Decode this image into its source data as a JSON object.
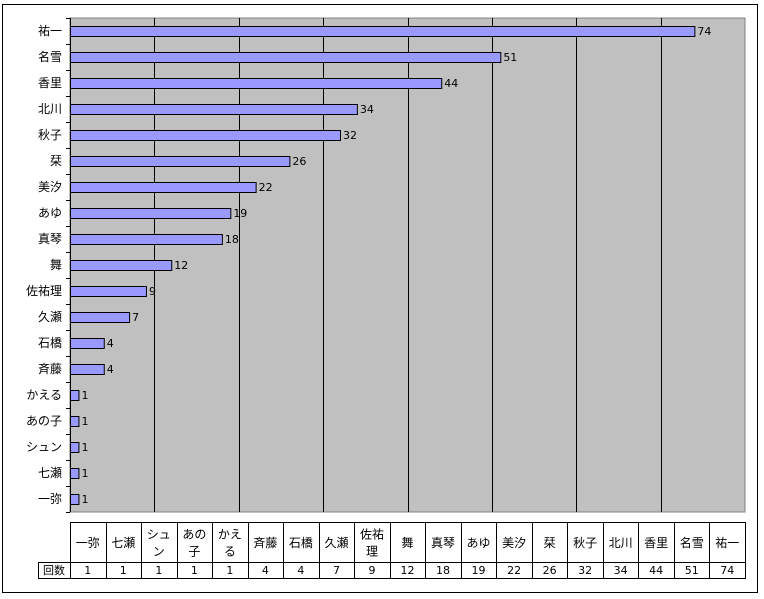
{
  "chart_data": {
    "type": "bar",
    "orientation": "horizontal",
    "categories": [
      "祐一",
      "名雪",
      "香里",
      "北川",
      "秋子",
      "栞",
      "美汐",
      "あゆ",
      "真琴",
      "舞",
      "佐祐理",
      "久瀬",
      "石橋",
      "斉藤",
      "かえる",
      "あの子",
      "シュン",
      "七瀬",
      "一弥"
    ],
    "values": [
      74,
      51,
      44,
      34,
      32,
      26,
      22,
      19,
      18,
      12,
      9,
      7,
      4,
      4,
      1,
      1,
      1,
      1,
      1
    ],
    "series": [
      {
        "name": "回数",
        "values": [
          74,
          51,
          44,
          34,
          32,
          26,
          22,
          19,
          18,
          12,
          9,
          7,
          4,
          4,
          1,
          1,
          1,
          1,
          1
        ]
      }
    ],
    "xlim": [
      0,
      80
    ],
    "gridlines": [
      10,
      20,
      30,
      40,
      50,
      60,
      70
    ],
    "grid": true,
    "data_labels": true,
    "colors": {
      "bar": "#9999ff",
      "plot_bg": "#c0c0c0",
      "grid": "#000000"
    },
    "table": {
      "row_header": "回数",
      "columns": [
        {
          "label_lines": [
            "一弥"
          ],
          "value": 1
        },
        {
          "label_lines": [
            "七瀬"
          ],
          "value": 1
        },
        {
          "label_lines": [
            "シュ",
            "ン"
          ],
          "value": 1
        },
        {
          "label_lines": [
            "あの",
            "子"
          ],
          "value": 1
        },
        {
          "label_lines": [
            "かえ",
            "る"
          ],
          "value": 1
        },
        {
          "label_lines": [
            "斉藤"
          ],
          "value": 4
        },
        {
          "label_lines": [
            "石橋"
          ],
          "value": 4
        },
        {
          "label_lines": [
            "久瀬"
          ],
          "value": 7
        },
        {
          "label_lines": [
            "佐祐",
            "理"
          ],
          "value": 9
        },
        {
          "label_lines": [
            "舞"
          ],
          "value": 12
        },
        {
          "label_lines": [
            "真琴"
          ],
          "value": 18
        },
        {
          "label_lines": [
            "あゆ"
          ],
          "value": 19
        },
        {
          "label_lines": [
            "美汐"
          ],
          "value": 22
        },
        {
          "label_lines": [
            "栞"
          ],
          "value": 26
        },
        {
          "label_lines": [
            "秋子"
          ],
          "value": 32
        },
        {
          "label_lines": [
            "北川"
          ],
          "value": 34
        },
        {
          "label_lines": [
            "香里"
          ],
          "value": 44
        },
        {
          "label_lines": [
            "名雪"
          ],
          "value": 51
        },
        {
          "label_lines": [
            "祐一"
          ],
          "value": 74
        }
      ]
    }
  }
}
